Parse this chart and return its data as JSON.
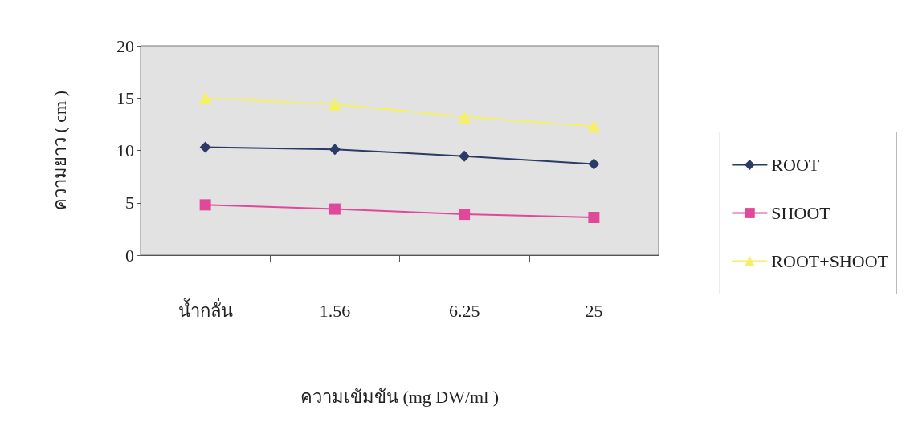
{
  "chart_data": {
    "type": "line",
    "xlabel": "ความเข้มข้น (mg DW/ml )",
    "ylabel": "ความยาว ( cm )",
    "categories": [
      "น้ำกลั่น",
      "1.56",
      "6.25",
      "25"
    ],
    "series": [
      {
        "name": "ROOT",
        "color": "#2b3a67",
        "marker": "diamond",
        "values": [
          10.3,
          10.1,
          9.45,
          8.7
        ]
      },
      {
        "name": "SHOOT",
        "color": "#e0489a",
        "marker": "square",
        "values": [
          4.8,
          4.4,
          3.9,
          3.6
        ]
      },
      {
        "name": "ROOT+SHOOT",
        "color": "#f5f06a",
        "marker": "triangle",
        "values": [
          15.0,
          14.4,
          13.2,
          12.3
        ]
      }
    ],
    "ylim": [
      0,
      20
    ],
    "yticks": [
      0,
      5,
      10,
      15,
      20
    ],
    "grid": false,
    "legend": "right",
    "line_style": "solid"
  }
}
